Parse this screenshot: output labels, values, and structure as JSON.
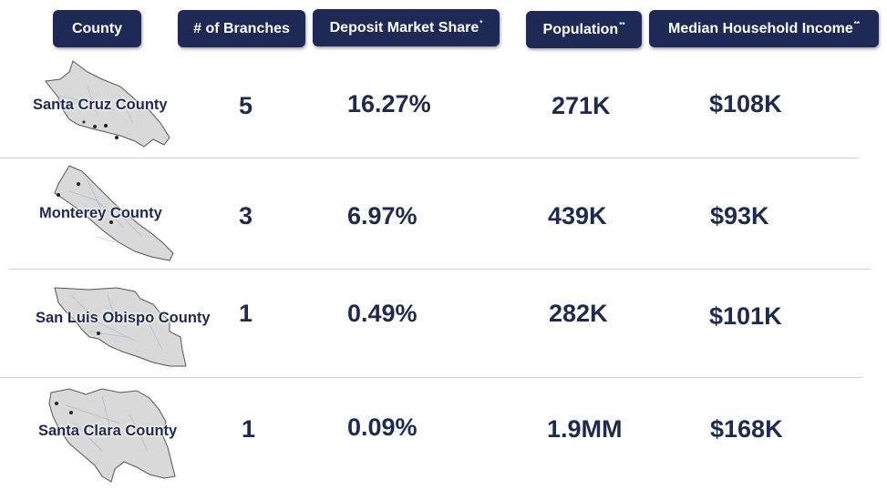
{
  "headers": {
    "county": "County",
    "branches": "# of Branches",
    "deposit": "Deposit Market Share",
    "deposit_mark": "*",
    "population": "Population",
    "population_mark": "**",
    "income": "Median Household Income",
    "income_mark": "**"
  },
  "rows": [
    {
      "county": "Santa Cruz County",
      "branches": "5",
      "deposit": "16.27%",
      "population": "271K",
      "income": "$108K"
    },
    {
      "county": "Monterey County",
      "branches": "3",
      "deposit": "6.97%",
      "population": "439K",
      "income": "$93K"
    },
    {
      "county": "San Luis Obispo County",
      "branches": "1",
      "deposit": "0.49%",
      "population": "282K",
      "income": "$101K"
    },
    {
      "county": "Santa Clara County",
      "branches": "1",
      "deposit": "0.09%",
      "population": "1.9MM",
      "income": "$168K"
    }
  ],
  "colors": {
    "header_bg": "#1e2a55",
    "header_text": "#ffffff",
    "value_text": "#1f2a4f",
    "map_fill": "#d9d9d9",
    "map_stroke": "#555555"
  }
}
